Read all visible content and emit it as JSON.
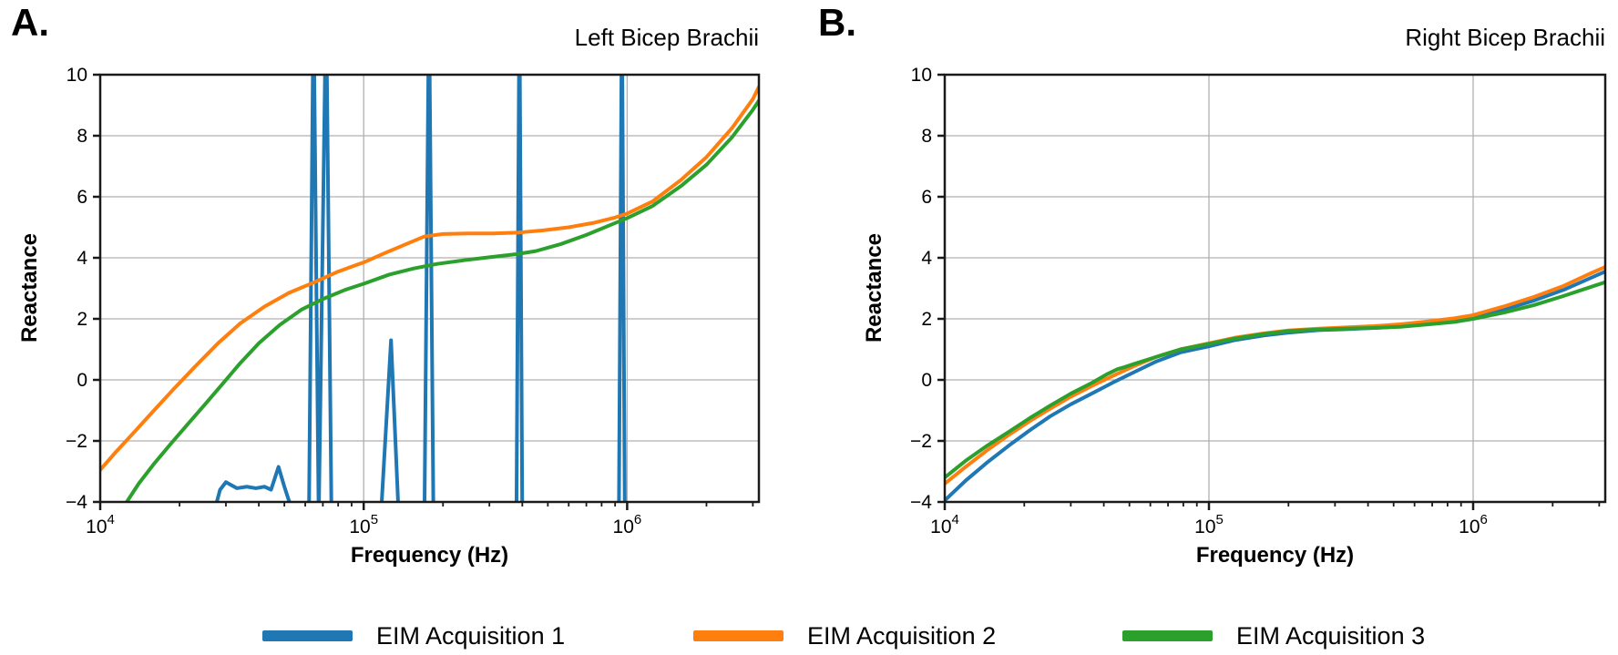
{
  "colors": {
    "acq1_blue": "#1f77b4",
    "acq2_orange": "#ff7f0e",
    "acq3_green": "#2ca02c",
    "grid": "#b0b0b0",
    "spine": "#1a1a1a",
    "background": "#ffffff"
  },
  "legend": {
    "items": [
      {
        "label": "EIM Acquisition 1",
        "color": "#1f77b4"
      },
      {
        "label": "EIM Acquisition 2",
        "color": "#ff7f0e"
      },
      {
        "label": "EIM Acquisition 3",
        "color": "#2ca02c"
      }
    ]
  },
  "chart_data": [
    {
      "type": "line",
      "panel_label": "A.",
      "title": "Left Bicep Brachii",
      "xlabel": "Frequency (Hz)",
      "ylabel": "Reactance",
      "xscale": "log",
      "xlim": [
        10000,
        3162278
      ],
      "ylim": [
        -4,
        10
      ],
      "yticks": [
        10,
        8,
        6,
        4,
        2,
        0,
        -2,
        -4
      ],
      "xtick_exponents": [
        4,
        5,
        6
      ],
      "xtick_base": "10",
      "grid": true,
      "series": [
        {
          "name": "EIM Acquisition 1",
          "color": "#1f77b4",
          "points": [
            [
              27500,
              -4.1
            ],
            [
              28500,
              -3.6
            ],
            [
              30000,
              -3.35
            ],
            [
              33000,
              -3.55
            ],
            [
              36000,
              -3.5
            ],
            [
              39000,
              -3.55
            ],
            [
              42000,
              -3.5
            ],
            [
              44500,
              -3.6
            ],
            [
              47500,
              -2.85
            ],
            [
              50000,
              -3.5
            ],
            [
              52000,
              -3.95
            ],
            [
              54500,
              -4.35
            ],
            [
              62000,
              -4.35
            ],
            [
              64500,
              12.5
            ],
            [
              67500,
              -4.6
            ],
            [
              72000,
              12.5
            ],
            [
              75500,
              -4.6
            ],
            [
              116000,
              -4.6
            ],
            [
              127000,
              1.3
            ],
            [
              136000,
              -4.6
            ],
            [
              170000,
              -4.6
            ],
            [
              177000,
              12.5
            ],
            [
              184000,
              -4.6
            ],
            [
              380000,
              -4.6
            ],
            [
              390000,
              12.5
            ],
            [
              400000,
              -4.6
            ],
            [
              930000,
              -4.6
            ],
            [
              955000,
              12.5
            ],
            [
              980000,
              -4.6
            ]
          ]
        },
        {
          "name": "EIM Acquisition 2",
          "color": "#ff7f0e",
          "points": [
            [
              10000,
              -2.95
            ],
            [
              11500,
              -2.35
            ],
            [
              13500,
              -1.7
            ],
            [
              16000,
              -1.0
            ],
            [
              19000,
              -0.3
            ],
            [
              23000,
              0.45
            ],
            [
              28000,
              1.2
            ],
            [
              34000,
              1.85
            ],
            [
              42000,
              2.4
            ],
            [
              52000,
              2.85
            ],
            [
              65000,
              3.2
            ],
            [
              80000,
              3.55
            ],
            [
              100000,
              3.85
            ],
            [
              120000,
              4.15
            ],
            [
              145000,
              4.45
            ],
            [
              170000,
              4.7
            ],
            [
              200000,
              4.78
            ],
            [
              250000,
              4.8
            ],
            [
              310000,
              4.8
            ],
            [
              390000,
              4.83
            ],
            [
              480000,
              4.9
            ],
            [
              600000,
              5.0
            ],
            [
              750000,
              5.15
            ],
            [
              900000,
              5.32
            ],
            [
              1000000,
              5.45
            ],
            [
              1250000,
              5.85
            ],
            [
              1600000,
              6.55
            ],
            [
              2000000,
              7.3
            ],
            [
              2500000,
              8.25
            ],
            [
              3000000,
              9.2
            ],
            [
              3162278,
              9.6
            ]
          ]
        },
        {
          "name": "EIM Acquisition 3",
          "color": "#2ca02c",
          "points": [
            [
              12500,
              -4.05
            ],
            [
              14000,
              -3.4
            ],
            [
              16000,
              -2.75
            ],
            [
              18500,
              -2.1
            ],
            [
              21500,
              -1.45
            ],
            [
              25000,
              -0.8
            ],
            [
              29000,
              -0.15
            ],
            [
              34000,
              0.55
            ],
            [
              40000,
              1.2
            ],
            [
              48000,
              1.8
            ],
            [
              58000,
              2.3
            ],
            [
              70000,
              2.65
            ],
            [
              85000,
              2.95
            ],
            [
              100000,
              3.15
            ],
            [
              125000,
              3.45
            ],
            [
              155000,
              3.65
            ],
            [
              190000,
              3.8
            ],
            [
              240000,
              3.92
            ],
            [
              300000,
              4.02
            ],
            [
              380000,
              4.12
            ],
            [
              450000,
              4.22
            ],
            [
              560000,
              4.45
            ],
            [
              700000,
              4.75
            ],
            [
              850000,
              5.05
            ],
            [
              1000000,
              5.3
            ],
            [
              1250000,
              5.7
            ],
            [
              1600000,
              6.35
            ],
            [
              2000000,
              7.05
            ],
            [
              2500000,
              7.95
            ],
            [
              3000000,
              8.85
            ],
            [
              3162278,
              9.15
            ]
          ]
        }
      ]
    },
    {
      "type": "line",
      "panel_label": "B.",
      "title": "Right Bicep Brachii",
      "xlabel": "Frequency (Hz)",
      "ylabel": "Reactance",
      "xscale": "log",
      "xlim": [
        10000,
        3162278
      ],
      "ylim": [
        -4,
        10
      ],
      "yticks": [
        10,
        8,
        6,
        4,
        2,
        0,
        -2,
        -4
      ],
      "xtick_exponents": [
        4,
        5,
        6
      ],
      "xtick_base": "10",
      "grid": true,
      "series": [
        {
          "name": "EIM Acquisition 1",
          "color": "#1f77b4",
          "points": [
            [
              10000,
              -3.95
            ],
            [
              12000,
              -3.3
            ],
            [
              14500,
              -2.7
            ],
            [
              17500,
              -2.15
            ],
            [
              21000,
              -1.65
            ],
            [
              25000,
              -1.2
            ],
            [
              30000,
              -0.8
            ],
            [
              36000,
              -0.45
            ],
            [
              43000,
              -0.1
            ],
            [
              52000,
              0.25
            ],
            [
              63000,
              0.6
            ],
            [
              78000,
              0.9
            ],
            [
              100000,
              1.1
            ],
            [
              125000,
              1.3
            ],
            [
              160000,
              1.45
            ],
            [
              200000,
              1.55
            ],
            [
              260000,
              1.63
            ],
            [
              330000,
              1.66
            ],
            [
              420000,
              1.7
            ],
            [
              530000,
              1.75
            ],
            [
              680000,
              1.85
            ],
            [
              850000,
              1.95
            ],
            [
              1000000,
              2.05
            ],
            [
              1300000,
              2.3
            ],
            [
              1700000,
              2.6
            ],
            [
              2200000,
              2.95
            ],
            [
              2800000,
              3.35
            ],
            [
              3162278,
              3.55
            ]
          ]
        },
        {
          "name": "EIM Acquisition 2",
          "color": "#ff7f0e",
          "points": [
            [
              10000,
              -3.4
            ],
            [
              12000,
              -2.85
            ],
            [
              14500,
              -2.3
            ],
            [
              17500,
              -1.8
            ],
            [
              21000,
              -1.35
            ],
            [
              25000,
              -0.95
            ],
            [
              30000,
              -0.55
            ],
            [
              36000,
              -0.2
            ],
            [
              43000,
              0.12
            ],
            [
              52000,
              0.45
            ],
            [
              63000,
              0.75
            ],
            [
              78000,
              1.0
            ],
            [
              100000,
              1.2
            ],
            [
              125000,
              1.38
            ],
            [
              160000,
              1.52
            ],
            [
              200000,
              1.62
            ],
            [
              260000,
              1.68
            ],
            [
              330000,
              1.72
            ],
            [
              420000,
              1.76
            ],
            [
              530000,
              1.82
            ],
            [
              680000,
              1.92
            ],
            [
              850000,
              2.02
            ],
            [
              1000000,
              2.12
            ],
            [
              1300000,
              2.4
            ],
            [
              1700000,
              2.72
            ],
            [
              2200000,
              3.08
            ],
            [
              2800000,
              3.5
            ],
            [
              3162278,
              3.7
            ]
          ]
        },
        {
          "name": "EIM Acquisition 3",
          "color": "#2ca02c",
          "points": [
            [
              10000,
              -3.2
            ],
            [
              12000,
              -2.65
            ],
            [
              14500,
              -2.15
            ],
            [
              17500,
              -1.7
            ],
            [
              21000,
              -1.25
            ],
            [
              25000,
              -0.85
            ],
            [
              30000,
              -0.45
            ],
            [
              36000,
              -0.1
            ],
            [
              41000,
              0.18
            ],
            [
              45000,
              0.35
            ],
            [
              48000,
              0.42
            ],
            [
              52000,
              0.52
            ],
            [
              63000,
              0.75
            ],
            [
              78000,
              1.0
            ],
            [
              100000,
              1.18
            ],
            [
              125000,
              1.35
            ],
            [
              160000,
              1.5
            ],
            [
              200000,
              1.6
            ],
            [
              260000,
              1.65
            ],
            [
              330000,
              1.68
            ],
            [
              420000,
              1.7
            ],
            [
              530000,
              1.74
            ],
            [
              680000,
              1.82
            ],
            [
              850000,
              1.9
            ],
            [
              1000000,
              2.0
            ],
            [
              1300000,
              2.2
            ],
            [
              1700000,
              2.45
            ],
            [
              2200000,
              2.75
            ],
            [
              2800000,
              3.05
            ],
            [
              3162278,
              3.2
            ]
          ]
        }
      ]
    }
  ]
}
